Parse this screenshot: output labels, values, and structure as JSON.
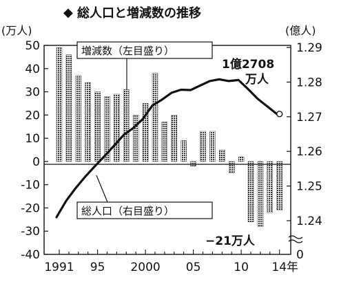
{
  "chart_data": {
    "title": "総人口と増減数の推移",
    "type": "bar+line",
    "left_axis": {
      "unit": "(万人)",
      "ylim": [
        -40,
        50
      ],
      "ticks": [
        "50",
        "40",
        "30",
        "20",
        "10",
        "0",
        "-10",
        "-20",
        "-30",
        "-40"
      ]
    },
    "right_axis": {
      "unit": "(億人)",
      "ylim": [
        1.235,
        1.29
      ],
      "ticks": [
        "1.29",
        "1.28",
        "1.27",
        "1.26",
        "1.25",
        "1.24"
      ],
      "bottom_label": "0"
    },
    "x_ticks": [
      "1991",
      "95",
      "2000",
      "05",
      "10",
      "14年"
    ],
    "years": [
      1991,
      1992,
      1993,
      1994,
      1995,
      1996,
      1997,
      1998,
      1999,
      2000,
      2001,
      2002,
      2003,
      2004,
      2005,
      2006,
      2007,
      2008,
      2009,
      2010,
      2011,
      2012,
      2013,
      2014
    ],
    "bar_series": {
      "name": "増減数（左目盛り）",
      "values": [
        49,
        46,
        37,
        34,
        30,
        28,
        29,
        31,
        20,
        25,
        38,
        17,
        20,
        9,
        -2,
        13,
        13,
        5,
        -5,
        2,
        -26,
        -28,
        -22,
        -21
      ]
    },
    "line_series": {
      "name": "総人口（右目盛り）",
      "values": [
        1.241,
        1.2457,
        1.2494,
        1.2527,
        1.2557,
        1.2586,
        1.2616,
        1.2647,
        1.2667,
        1.2693,
        1.2732,
        1.2749,
        1.2769,
        1.2778,
        1.2777,
        1.279,
        1.2803,
        1.2808,
        1.2803,
        1.2806,
        1.278,
        1.2752,
        1.273,
        1.2708
      ]
    },
    "annotations": {
      "peak_line1": "1億2708",
      "peak_line2": "万人",
      "drop_label": "−21万人"
    }
  }
}
